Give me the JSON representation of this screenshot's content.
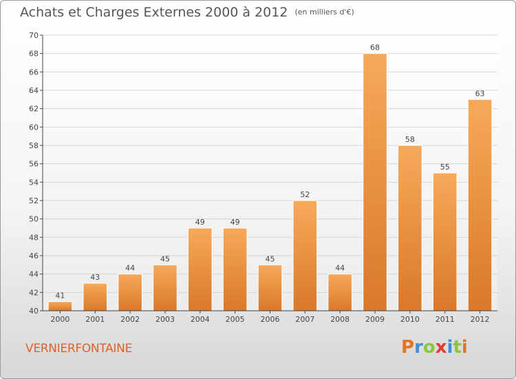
{
  "title": "Achats et Charges Externes 2000 à 2012",
  "unit": "(en milliers d'€)",
  "town": "VERNIERFONTAINE",
  "logo": {
    "letters": [
      "P",
      "r",
      "o",
      "x",
      "i",
      "t",
      "i"
    ],
    "colors": [
      "#e8731e",
      "#3b8fd6",
      "#8cc63f",
      "#e03c31",
      "#3b8fd6",
      "#8cc63f",
      "#e8731e"
    ]
  },
  "chart_data": {
    "type": "bar",
    "categories": [
      "2000",
      "2001",
      "2002",
      "2003",
      "2004",
      "2005",
      "2006",
      "2007",
      "2008",
      "2009",
      "2010",
      "2011",
      "2012"
    ],
    "values": [
      41,
      43,
      44,
      45,
      49,
      49,
      45,
      52,
      44,
      68,
      58,
      55,
      63
    ],
    "data_labels": [
      "41",
      "43",
      "44",
      "45",
      "49",
      "49",
      "45",
      "52",
      "44",
      "68",
      "58",
      "55",
      "63"
    ],
    "yticks": [
      "40",
      "42",
      "44",
      "46",
      "48",
      "50",
      "52",
      "54",
      "56",
      "58",
      "60",
      "62",
      "64",
      "66",
      "68",
      "70"
    ],
    "ylim": [
      40,
      70
    ],
    "grid": true,
    "bar_color_top": "#f7a95a",
    "bar_color_bottom": "#d9782a"
  }
}
